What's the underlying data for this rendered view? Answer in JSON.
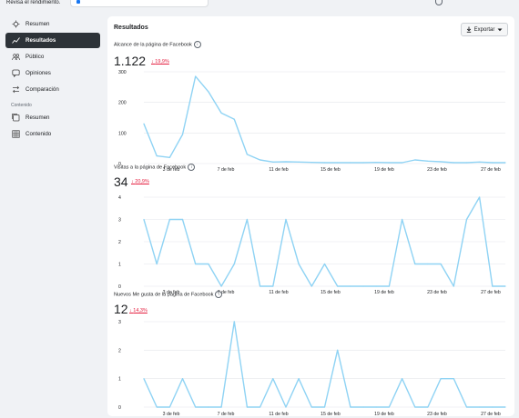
{
  "top": {
    "hint": "Revisa el rendimiento."
  },
  "sidebar": {
    "items": [
      {
        "label": "Resumen",
        "icon": "overview-icon"
      },
      {
        "label": "Resultados",
        "icon": "results-icon",
        "active": true
      },
      {
        "label": "Público",
        "icon": "audience-icon"
      },
      {
        "label": "Opiniones",
        "icon": "feedback-icon"
      },
      {
        "label": "Comparación",
        "icon": "comparison-icon"
      }
    ],
    "section": "Contenido",
    "content_items": [
      {
        "label": "Resumen",
        "icon": "content-overview-icon"
      },
      {
        "label": "Contenido",
        "icon": "content-grid-icon"
      }
    ]
  },
  "main": {
    "title": "Resultados",
    "export_label": "Exportar"
  },
  "colors": {
    "line": "#8fd3f4",
    "delta": "#e41e3f",
    "active_nav": "#2d3338"
  },
  "charts": [
    {
      "title": "Alcance de la página de Facebook",
      "value": "1.122",
      "delta": "19,9%"
    },
    {
      "title": "Visitas a la página de Facebook",
      "value": "34",
      "delta": "20,9%"
    },
    {
      "title": "Nuevos Me gusta de la página de Facebook",
      "value": "12",
      "delta": "14,3%"
    }
  ],
  "chart_data": [
    {
      "type": "line",
      "title": "Alcance de la página de Facebook",
      "x_ticks": [
        "3 de feb",
        "7 de feb",
        "11 de feb",
        "15 de feb",
        "19 de feb",
        "23 de feb",
        "27 de feb"
      ],
      "y_ticks": [
        0,
        100,
        200,
        300
      ],
      "ylim": [
        0,
        300
      ],
      "values": [
        130,
        25,
        20,
        95,
        285,
        235,
        165,
        145,
        30,
        12,
        5,
        6,
        5,
        4,
        3,
        3,
        3,
        3,
        4,
        3,
        3,
        12,
        8,
        6,
        3,
        3,
        5,
        3,
        3
      ]
    },
    {
      "type": "line",
      "title": "Visitas a la página de Facebook",
      "x_ticks": [
        "3 de feb",
        "7 de feb",
        "11 de feb",
        "15 de feb",
        "19 de feb",
        "23 de feb",
        "27 de feb"
      ],
      "y_ticks": [
        0,
        1,
        2,
        3,
        4
      ],
      "ylim": [
        0,
        4
      ],
      "values": [
        3,
        1,
        3,
        3,
        1,
        1,
        0,
        1,
        3,
        0,
        0,
        3,
        1,
        0,
        1,
        0,
        0,
        0,
        0,
        0,
        3,
        1,
        1,
        1,
        0,
        3,
        4,
        0,
        0
      ]
    },
    {
      "type": "line",
      "title": "Nuevos Me gusta de la página de Facebook",
      "x_ticks": [
        "3 de feb",
        "7 de feb",
        "11 de feb",
        "15 de feb",
        "19 de feb",
        "23 de feb",
        "27 de feb"
      ],
      "y_ticks": [
        0,
        1,
        2,
        3
      ],
      "ylim": [
        0,
        3
      ],
      "values": [
        1,
        0,
        0,
        1,
        0,
        0,
        0,
        3,
        0,
        0,
        1,
        0,
        1,
        0,
        0,
        2,
        0,
        0,
        0,
        0,
        1,
        0,
        0,
        1,
        1,
        0,
        0,
        0,
        0
      ]
    }
  ]
}
